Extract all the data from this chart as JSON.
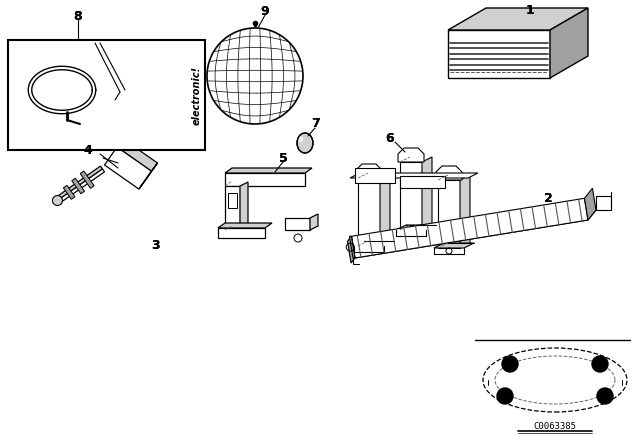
{
  "background_color": "#ffffff",
  "part_number": "C0063385",
  "line_color": "#000000",
  "gray_light": "#d0d0d0",
  "gray_mid": "#a0a0a0",
  "gray_dark": "#606060"
}
